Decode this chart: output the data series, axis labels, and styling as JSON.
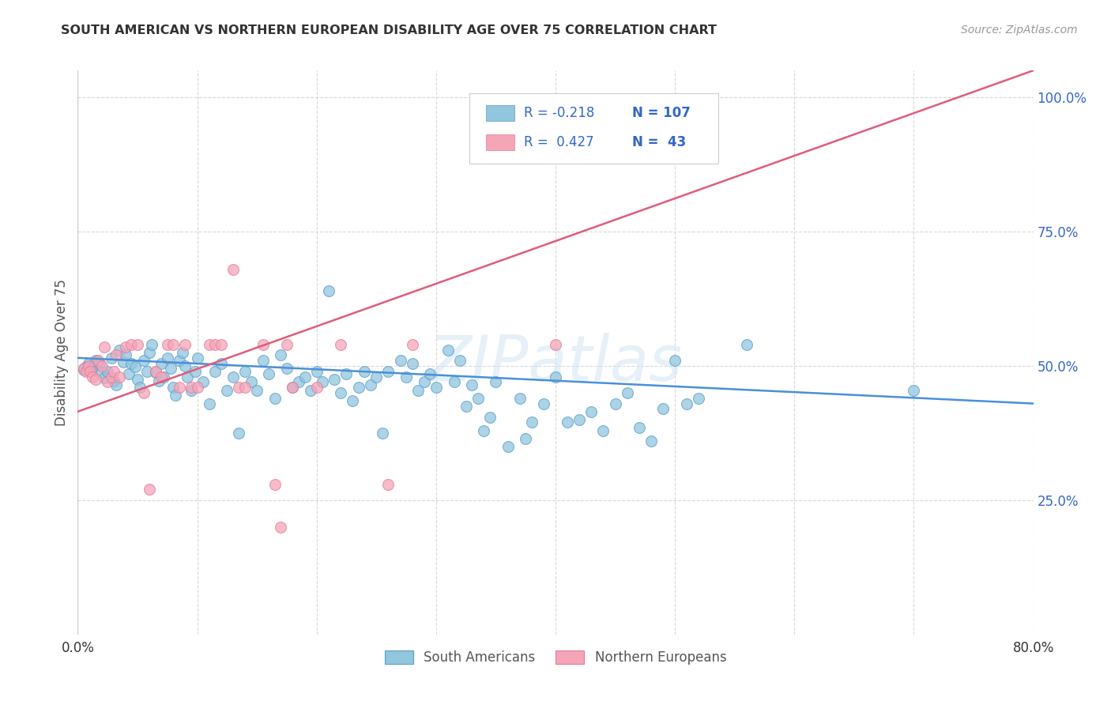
{
  "title": "SOUTH AMERICAN VS NORTHERN EUROPEAN DISABILITY AGE OVER 75 CORRELATION CHART",
  "source": "Source: ZipAtlas.com",
  "ylabel": "Disability Age Over 75",
  "xlim": [
    0.0,
    0.8
  ],
  "ylim": [
    0.0,
    1.05
  ],
  "xticks": [
    0.0,
    0.1,
    0.2,
    0.3,
    0.4,
    0.5,
    0.6,
    0.7,
    0.8
  ],
  "xticklabels": [
    "0.0%",
    "",
    "",
    "",
    "",
    "",
    "",
    "",
    "80.0%"
  ],
  "ytick_positions": [
    0.25,
    0.5,
    0.75,
    1.0
  ],
  "ytick_labels": [
    "25.0%",
    "50.0%",
    "75.0%",
    "100.0%"
  ],
  "blue_color": "#92c5de",
  "pink_color": "#f4a6b8",
  "blue_edge_color": "#5a9ec9",
  "pink_edge_color": "#e87a96",
  "blue_line_color": "#4a90d9",
  "pink_line_color": "#e05c7a",
  "legend_r_blue": "-0.218",
  "legend_n_blue": "107",
  "legend_r_pink": "0.427",
  "legend_n_pink": "43",
  "legend_text_color": "#3366cc",
  "watermark": "ZIPatlas",
  "blue_scatter": [
    [
      0.005,
      0.492
    ],
    [
      0.007,
      0.498
    ],
    [
      0.009,
      0.505
    ],
    [
      0.011,
      0.495
    ],
    [
      0.013,
      0.5
    ],
    [
      0.015,
      0.51
    ],
    [
      0.018,
      0.505
    ],
    [
      0.02,
      0.488
    ],
    [
      0.022,
      0.478
    ],
    [
      0.025,
      0.49
    ],
    [
      0.028,
      0.515
    ],
    [
      0.03,
      0.472
    ],
    [
      0.032,
      0.465
    ],
    [
      0.035,
      0.53
    ],
    [
      0.038,
      0.508
    ],
    [
      0.04,
      0.52
    ],
    [
      0.043,
      0.485
    ],
    [
      0.045,
      0.505
    ],
    [
      0.048,
      0.498
    ],
    [
      0.05,
      0.475
    ],
    [
      0.052,
      0.46
    ],
    [
      0.055,
      0.51
    ],
    [
      0.058,
      0.49
    ],
    [
      0.06,
      0.525
    ],
    [
      0.062,
      0.54
    ],
    [
      0.065,
      0.488
    ],
    [
      0.068,
      0.472
    ],
    [
      0.07,
      0.505
    ],
    [
      0.072,
      0.48
    ],
    [
      0.075,
      0.515
    ],
    [
      0.078,
      0.495
    ],
    [
      0.08,
      0.46
    ],
    [
      0.082,
      0.445
    ],
    [
      0.085,
      0.51
    ],
    [
      0.088,
      0.525
    ],
    [
      0.09,
      0.5
    ],
    [
      0.092,
      0.48
    ],
    [
      0.095,
      0.455
    ],
    [
      0.098,
      0.49
    ],
    [
      0.1,
      0.515
    ],
    [
      0.105,
      0.47
    ],
    [
      0.11,
      0.43
    ],
    [
      0.115,
      0.49
    ],
    [
      0.12,
      0.505
    ],
    [
      0.125,
      0.455
    ],
    [
      0.13,
      0.48
    ],
    [
      0.135,
      0.375
    ],
    [
      0.14,
      0.49
    ],
    [
      0.145,
      0.47
    ],
    [
      0.15,
      0.455
    ],
    [
      0.155,
      0.51
    ],
    [
      0.16,
      0.485
    ],
    [
      0.165,
      0.44
    ],
    [
      0.17,
      0.52
    ],
    [
      0.175,
      0.495
    ],
    [
      0.18,
      0.46
    ],
    [
      0.185,
      0.47
    ],
    [
      0.19,
      0.48
    ],
    [
      0.195,
      0.455
    ],
    [
      0.2,
      0.49
    ],
    [
      0.205,
      0.47
    ],
    [
      0.21,
      0.64
    ],
    [
      0.215,
      0.475
    ],
    [
      0.22,
      0.45
    ],
    [
      0.225,
      0.485
    ],
    [
      0.23,
      0.435
    ],
    [
      0.235,
      0.46
    ],
    [
      0.24,
      0.49
    ],
    [
      0.245,
      0.465
    ],
    [
      0.25,
      0.48
    ],
    [
      0.255,
      0.375
    ],
    [
      0.26,
      0.49
    ],
    [
      0.27,
      0.51
    ],
    [
      0.275,
      0.48
    ],
    [
      0.28,
      0.505
    ],
    [
      0.285,
      0.455
    ],
    [
      0.29,
      0.47
    ],
    [
      0.295,
      0.485
    ],
    [
      0.3,
      0.46
    ],
    [
      0.31,
      0.53
    ],
    [
      0.315,
      0.47
    ],
    [
      0.32,
      0.51
    ],
    [
      0.325,
      0.425
    ],
    [
      0.33,
      0.465
    ],
    [
      0.335,
      0.44
    ],
    [
      0.34,
      0.38
    ],
    [
      0.345,
      0.405
    ],
    [
      0.35,
      0.47
    ],
    [
      0.36,
      0.35
    ],
    [
      0.37,
      0.44
    ],
    [
      0.375,
      0.365
    ],
    [
      0.38,
      0.395
    ],
    [
      0.39,
      0.43
    ],
    [
      0.4,
      0.48
    ],
    [
      0.41,
      0.395
    ],
    [
      0.42,
      0.4
    ],
    [
      0.43,
      0.415
    ],
    [
      0.44,
      0.38
    ],
    [
      0.45,
      0.43
    ],
    [
      0.46,
      0.45
    ],
    [
      0.47,
      0.385
    ],
    [
      0.48,
      0.36
    ],
    [
      0.49,
      0.42
    ],
    [
      0.5,
      0.51
    ],
    [
      0.51,
      0.43
    ],
    [
      0.52,
      0.44
    ],
    [
      0.56,
      0.54
    ],
    [
      0.7,
      0.455
    ]
  ],
  "pink_scatter": [
    [
      0.005,
      0.495
    ],
    [
      0.007,
      0.49
    ],
    [
      0.009,
      0.5
    ],
    [
      0.01,
      0.49
    ],
    [
      0.012,
      0.48
    ],
    [
      0.015,
      0.475
    ],
    [
      0.017,
      0.51
    ],
    [
      0.02,
      0.5
    ],
    [
      0.022,
      0.535
    ],
    [
      0.025,
      0.47
    ],
    [
      0.028,
      0.48
    ],
    [
      0.03,
      0.49
    ],
    [
      0.032,
      0.52
    ],
    [
      0.035,
      0.48
    ],
    [
      0.04,
      0.535
    ],
    [
      0.045,
      0.54
    ],
    [
      0.05,
      0.54
    ],
    [
      0.055,
      0.45
    ],
    [
      0.06,
      0.27
    ],
    [
      0.065,
      0.49
    ],
    [
      0.07,
      0.48
    ],
    [
      0.075,
      0.54
    ],
    [
      0.08,
      0.54
    ],
    [
      0.085,
      0.46
    ],
    [
      0.09,
      0.54
    ],
    [
      0.095,
      0.46
    ],
    [
      0.1,
      0.46
    ],
    [
      0.11,
      0.54
    ],
    [
      0.115,
      0.54
    ],
    [
      0.12,
      0.54
    ],
    [
      0.13,
      0.68
    ],
    [
      0.135,
      0.46
    ],
    [
      0.14,
      0.46
    ],
    [
      0.155,
      0.54
    ],
    [
      0.165,
      0.28
    ],
    [
      0.17,
      0.2
    ],
    [
      0.175,
      0.54
    ],
    [
      0.18,
      0.46
    ],
    [
      0.2,
      0.46
    ],
    [
      0.22,
      0.54
    ],
    [
      0.26,
      0.28
    ],
    [
      0.28,
      0.54
    ],
    [
      0.4,
      0.54
    ]
  ],
  "blue_trend_x": [
    0.0,
    0.8
  ],
  "blue_trend_y": [
    0.515,
    0.43
  ],
  "pink_trend_x": [
    0.0,
    0.8
  ],
  "pink_trend_y": [
    0.415,
    1.05
  ],
  "background_color": "#ffffff",
  "grid_color": "#d8d8d8"
}
